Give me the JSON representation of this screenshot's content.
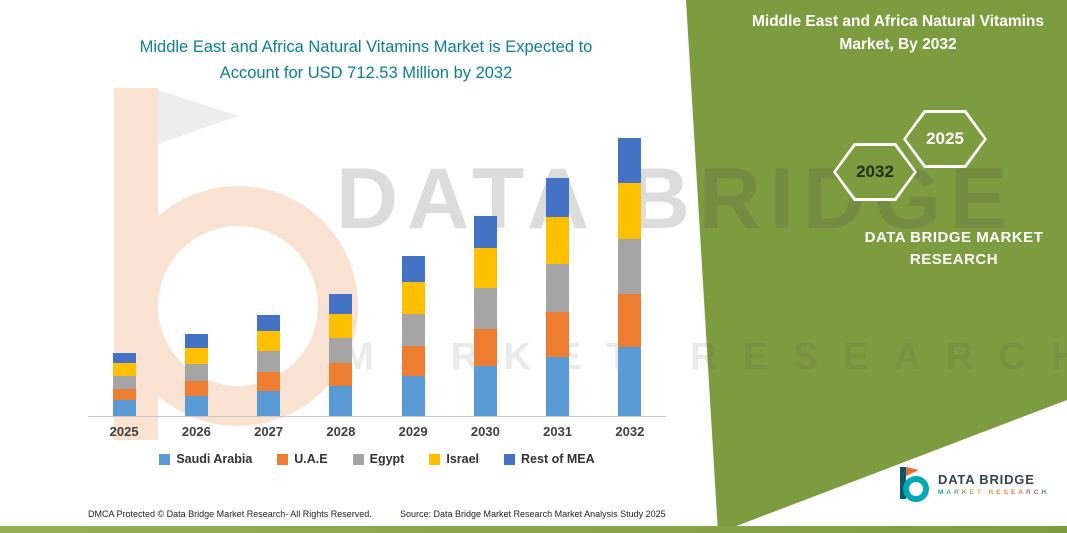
{
  "title": {
    "line1": "Middle East and Africa Natural Vitamins Market is Expected to",
    "line2": "Account for USD 712.53 Million by 2032"
  },
  "right_panel": {
    "heading_line1": "Middle East and Africa Natural Vitamins",
    "heading_line2": "Market, By 2032",
    "hex_back_label": "2032",
    "hex_front_label": "2025",
    "brand": "DATA BRIDGE MARKET RESEARCH",
    "panel_color": "#7d9c3f"
  },
  "watermark": {
    "line1": "DATA BRIDGE",
    "line2": "MARKET RESEARCH"
  },
  "chart_data": {
    "type": "bar",
    "stacked": true,
    "title": "Middle East and Africa Natural Vitamins Market is Expected to Account for USD 712.53 Million by 2032",
    "unit": "USD Million",
    "categories": [
      "2025",
      "2026",
      "2027",
      "2028",
      "2029",
      "2030",
      "2031",
      "2032"
    ],
    "series": [
      {
        "name": "Saudi Arabia",
        "color": "#5B9BD5",
        "values": [
          40,
          52,
          65,
          78,
          102,
          128,
          152,
          178
        ]
      },
      {
        "name": "U.A.E",
        "color": "#ED7D31",
        "values": [
          30,
          39,
          49,
          58,
          77,
          96,
          115,
          134
        ]
      },
      {
        "name": "Egypt",
        "color": "#A5A5A5",
        "values": [
          32,
          42,
          52,
          63,
          82,
          103,
          122,
          143
        ]
      },
      {
        "name": "Israel",
        "color": "#FFC000",
        "values": [
          33,
          42,
          52,
          62,
          82,
          103,
          122,
          142
        ]
      },
      {
        "name": "Rest of MEA",
        "color": "#4472C4",
        "values": [
          26,
          34,
          42,
          51,
          66,
          83,
          99,
          115.53
        ]
      }
    ],
    "totals": [
      161,
      209,
      260,
      312,
      409,
      513,
      610,
      712.53
    ],
    "ylim": [
      0,
      750
    ],
    "grid": false,
    "legend_position": "bottom"
  },
  "footer": {
    "dmca": "DMCA Protected © Data Bridge Market Research-  All Rights Reserved.",
    "source": "Source: Data Bridge Market Research  Market Analysis Study 2025",
    "logo_title": "DATA BRIDGE",
    "logo_sub": "MARKET RESEARCH"
  },
  "colors": {
    "headline_teal": "#0e7d92",
    "panel_green": "#7d9c3f",
    "axis_gray": "#c8c8c8",
    "logo_teal": "#00a7b5"
  }
}
